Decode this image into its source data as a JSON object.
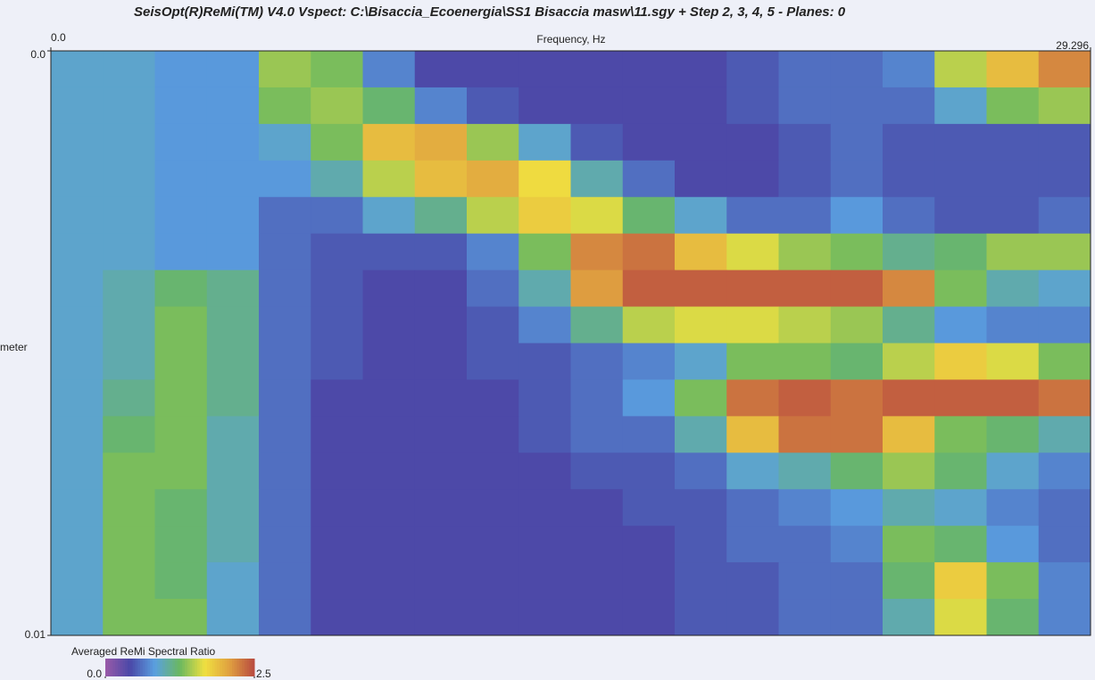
{
  "chart_data": {
    "type": "heatmap",
    "title": "SeisOpt(R)ReMi(TM) V4.0 Vspect: C:\\Bisaccia_Ecoenergia\\SS1 Bisaccia masw\\11.sgy + Step 2, 3, 4, 5 - Planes: 0",
    "xlabel": "Frequency, Hz",
    "ylabel": "meter",
    "xlim": [
      0,
      29.296
    ],
    "xticks": [
      {
        "value": 0,
        "label": "0.0"
      },
      29.296
    ],
    "ylim": [
      0,
      0.01
    ],
    "yticks": [
      {
        "value": 0,
        "label": "0.0"
      },
      0.01
    ],
    "colorbar_label": "Averaged ReMi Spectral Ratio",
    "zlim": [
      0,
      2.5
    ],
    "zticks": [
      {
        "value": 0,
        "label": "0.0"
      },
      2.5
    ],
    "colors": [
      "#9a5aa8",
      "#4a48a8",
      "#5aa0e0",
      "#6ab860",
      "#f0e040",
      "#e0a040",
      "#b84a40"
    ],
    "z": [
      [
        0.9,
        0.9,
        0.8,
        0.8,
        1.4,
        1.3,
        0.7,
        0.4,
        0.4,
        0.4,
        0.4,
        0.4,
        0.4,
        0.5,
        0.6,
        0.6,
        0.7,
        1.5,
        1.9,
        2.2
      ],
      [
        0.9,
        0.9,
        0.8,
        0.8,
        1.3,
        1.4,
        1.2,
        0.7,
        0.5,
        0.4,
        0.4,
        0.4,
        0.4,
        0.5,
        0.6,
        0.6,
        0.6,
        0.9,
        1.3,
        1.4
      ],
      [
        0.9,
        0.9,
        0.8,
        0.8,
        0.9,
        1.3,
        1.9,
        2.0,
        1.4,
        0.9,
        0.5,
        0.4,
        0.4,
        0.4,
        0.5,
        0.6,
        0.5,
        0.5,
        0.5,
        0.5
      ],
      [
        0.9,
        0.9,
        0.8,
        0.8,
        0.8,
        1.0,
        1.5,
        1.9,
        2.0,
        1.7,
        1.0,
        0.6,
        0.4,
        0.4,
        0.5,
        0.6,
        0.5,
        0.5,
        0.5,
        0.5
      ],
      [
        0.9,
        0.9,
        0.8,
        0.8,
        0.6,
        0.6,
        0.9,
        1.1,
        1.5,
        1.8,
        1.6,
        1.2,
        0.9,
        0.6,
        0.6,
        0.8,
        0.6,
        0.5,
        0.5,
        0.6
      ],
      [
        0.9,
        0.9,
        0.8,
        0.8,
        0.6,
        0.5,
        0.5,
        0.5,
        0.7,
        1.3,
        2.2,
        2.3,
        1.9,
        1.6,
        1.4,
        1.3,
        1.1,
        1.2,
        1.4,
        1.4
      ],
      [
        0.9,
        1.0,
        1.2,
        1.1,
        0.6,
        0.5,
        0.4,
        0.4,
        0.6,
        1.0,
        2.1,
        2.4,
        2.4,
        2.4,
        2.4,
        2.4,
        2.2,
        1.3,
        1.0,
        0.9
      ],
      [
        0.9,
        1.0,
        1.3,
        1.1,
        0.6,
        0.5,
        0.4,
        0.4,
        0.5,
        0.7,
        1.1,
        1.5,
        1.6,
        1.6,
        1.5,
        1.4,
        1.1,
        0.8,
        0.7,
        0.7
      ],
      [
        0.9,
        1.0,
        1.3,
        1.1,
        0.6,
        0.5,
        0.4,
        0.4,
        0.5,
        0.5,
        0.6,
        0.7,
        0.9,
        1.3,
        1.3,
        1.2,
        1.5,
        1.8,
        1.6,
        1.3
      ],
      [
        0.9,
        1.1,
        1.3,
        1.1,
        0.6,
        0.4,
        0.4,
        0.4,
        0.4,
        0.5,
        0.6,
        0.8,
        1.3,
        2.3,
        2.4,
        2.3,
        2.4,
        2.4,
        2.4,
        2.3
      ],
      [
        0.9,
        1.2,
        1.3,
        1.0,
        0.6,
        0.4,
        0.4,
        0.4,
        0.4,
        0.5,
        0.6,
        0.6,
        1.0,
        1.9,
        2.3,
        2.3,
        1.9,
        1.3,
        1.2,
        1.0
      ],
      [
        0.9,
        1.3,
        1.3,
        1.0,
        0.6,
        0.4,
        0.4,
        0.4,
        0.4,
        0.4,
        0.5,
        0.5,
        0.6,
        0.9,
        1.0,
        1.2,
        1.4,
        1.2,
        0.9,
        0.7
      ],
      [
        0.9,
        1.3,
        1.2,
        1.0,
        0.6,
        0.4,
        0.4,
        0.4,
        0.4,
        0.4,
        0.4,
        0.5,
        0.5,
        0.6,
        0.7,
        0.8,
        1.0,
        0.9,
        0.7,
        0.6
      ],
      [
        0.9,
        1.3,
        1.2,
        1.0,
        0.6,
        0.4,
        0.4,
        0.4,
        0.4,
        0.4,
        0.4,
        0.4,
        0.5,
        0.6,
        0.6,
        0.7,
        1.3,
        1.2,
        0.8,
        0.6
      ],
      [
        0.9,
        1.3,
        1.2,
        0.9,
        0.6,
        0.4,
        0.4,
        0.4,
        0.4,
        0.4,
        0.4,
        0.4,
        0.5,
        0.5,
        0.6,
        0.6,
        1.2,
        1.8,
        1.3,
        0.7
      ],
      [
        0.9,
        1.3,
        1.3,
        0.9,
        0.6,
        0.4,
        0.4,
        0.4,
        0.4,
        0.4,
        0.4,
        0.4,
        0.5,
        0.5,
        0.6,
        0.6,
        1.0,
        1.6,
        1.2,
        0.7
      ]
    ]
  }
}
